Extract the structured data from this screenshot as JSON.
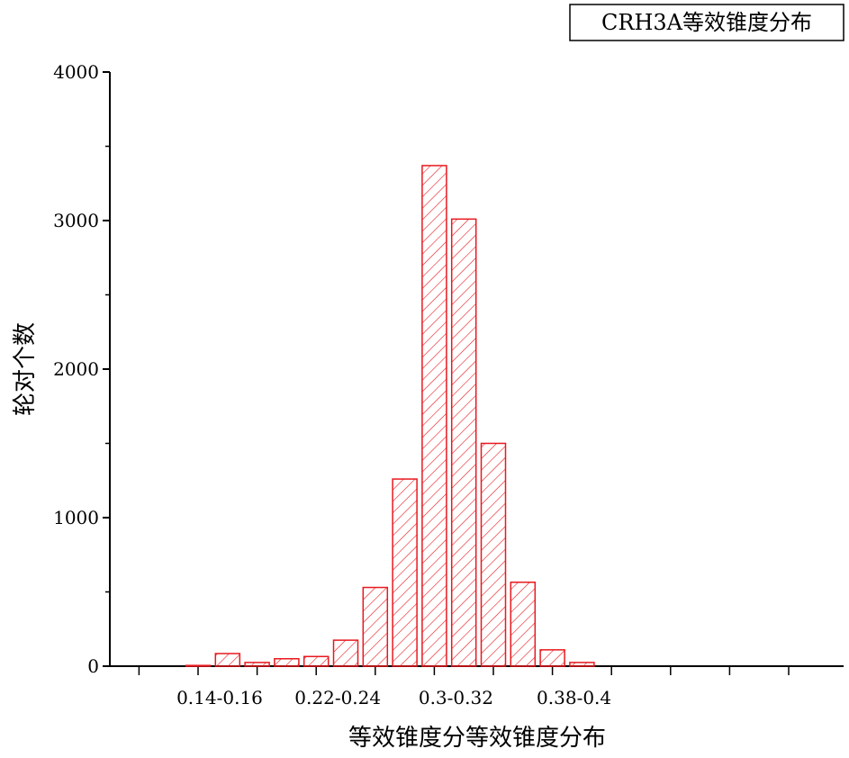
{
  "chart_data": {
    "type": "bar",
    "title": "CRH3A等效锥度分布",
    "x_label": "等效锥度分等效锥度分布",
    "y_label": "轮对个数",
    "categories": [
      "0.14-0.16",
      null,
      null,
      null,
      "0.22-0.24",
      null,
      null,
      null,
      "0.3-0.32",
      null,
      null,
      null,
      "0.38-0.4",
      null
    ],
    "values": [
      5,
      85,
      25,
      50,
      65,
      175,
      530,
      1260,
      3370,
      3010,
      1500,
      565,
      110,
      25
    ],
    "color": "#e8191e",
    "hatch": true,
    "ylim": [
      0,
      4000
    ],
    "yticks": [
      0,
      1000,
      2000,
      3000,
      4000
    ],
    "grid": false
  }
}
